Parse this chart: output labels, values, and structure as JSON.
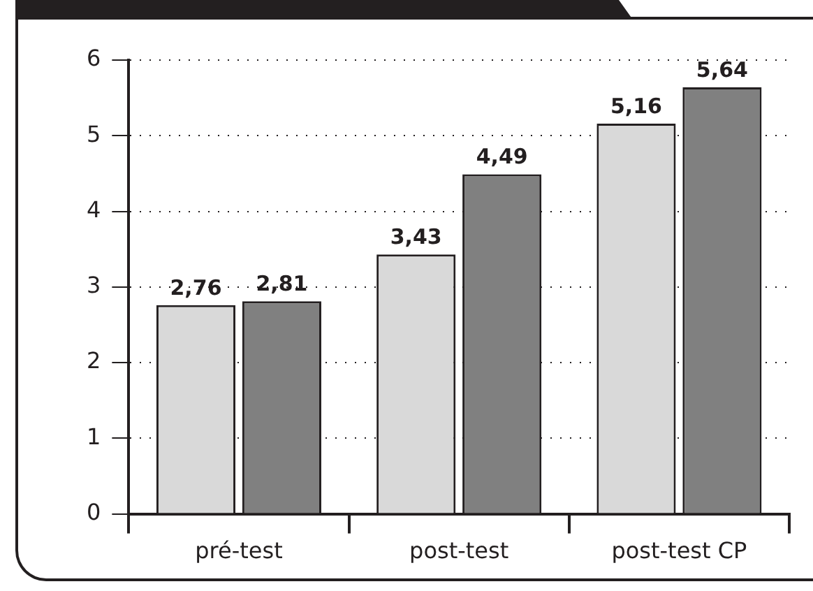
{
  "chart_data": {
    "type": "bar",
    "categories": [
      "pré-test",
      "post-test",
      "post-test CP"
    ],
    "series": [
      {
        "color": "#d9d9d9",
        "values": [
          2.76,
          3.43,
          5.16
        ]
      },
      {
        "color": "#808080",
        "values": [
          2.81,
          4.49,
          5.64
        ]
      }
    ],
    "ylim": [
      0,
      6
    ],
    "yticks": [
      0,
      1,
      2,
      3,
      4,
      5,
      6
    ],
    "grid": "y",
    "legend": false,
    "value_labels": [
      [
        "2,76",
        "3,43",
        "5,16"
      ],
      [
        "2,81",
        "4,49",
        "5,64"
      ]
    ]
  }
}
